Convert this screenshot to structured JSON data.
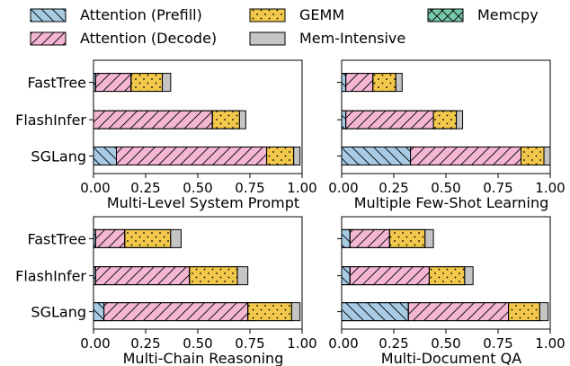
{
  "legend": [
    {
      "name": "Attention (Prefill)",
      "color": "#a8cbe4",
      "hatch": "backslash"
    },
    {
      "name": "Attention (Decode)",
      "color": "#f4b6d3",
      "hatch": "slash"
    },
    {
      "name": "GEMM",
      "color": "#f1c84b",
      "hatch": "dots"
    },
    {
      "name": "Mem-Intensive",
      "color": "#c5c5c5",
      "hatch": "none"
    },
    {
      "name": "Memcpy",
      "color": "#77c9a9",
      "hatch": "cross"
    }
  ],
  "chart_data": [
    {
      "type": "bar",
      "orientation": "horizontal",
      "stacked": true,
      "title": "",
      "xlabel": "Multi-Level System Prompt",
      "categories": [
        "FastTree",
        "FlashInfer",
        "SGLang"
      ],
      "xlim": [
        0,
        1.0
      ],
      "xticks": [
        "0.00",
        "0.25",
        "0.50",
        "0.75",
        "1.00"
      ],
      "series": [
        {
          "name": "Attention (Prefill)",
          "values": [
            0.01,
            0.0,
            0.11
          ]
        },
        {
          "name": "Attention (Decode)",
          "values": [
            0.17,
            0.57,
            0.72
          ]
        },
        {
          "name": "GEMM",
          "values": [
            0.15,
            0.13,
            0.13
          ]
        },
        {
          "name": "Mem-Intensive",
          "values": [
            0.04,
            0.03,
            0.03
          ]
        },
        {
          "name": "Memcpy",
          "values": [
            0.0,
            0.0,
            0.0
          ]
        }
      ]
    },
    {
      "type": "bar",
      "orientation": "horizontal",
      "stacked": true,
      "title": "",
      "xlabel": "Multiple Few-Shot Learning",
      "categories": [
        "FastTree",
        "FlashInfer",
        "SGLang"
      ],
      "xlim": [
        0,
        1.0
      ],
      "xticks": [
        "0.00",
        "0.25",
        "0.50",
        "0.75",
        "1.00"
      ],
      "series": [
        {
          "name": "Attention (Prefill)",
          "values": [
            0.02,
            0.02,
            0.33
          ]
        },
        {
          "name": "Attention (Decode)",
          "values": [
            0.13,
            0.42,
            0.53
          ]
        },
        {
          "name": "GEMM",
          "values": [
            0.11,
            0.11,
            0.11
          ]
        },
        {
          "name": "Mem-Intensive",
          "values": [
            0.03,
            0.03,
            0.03
          ]
        },
        {
          "name": "Memcpy",
          "values": [
            0.0,
            0.0,
            0.0
          ]
        }
      ]
    },
    {
      "type": "bar",
      "orientation": "horizontal",
      "stacked": true,
      "title": "",
      "xlabel": "Multi-Chain Reasoning",
      "categories": [
        "FastTree",
        "FlashInfer",
        "SGLang"
      ],
      "xlim": [
        0,
        1.0
      ],
      "xticks": [
        "0.00",
        "0.25",
        "0.50",
        "0.75",
        "1.00"
      ],
      "series": [
        {
          "name": "Attention (Prefill)",
          "values": [
            0.01,
            0.01,
            0.05
          ]
        },
        {
          "name": "Attention (Decode)",
          "values": [
            0.14,
            0.45,
            0.69
          ]
        },
        {
          "name": "GEMM",
          "values": [
            0.22,
            0.23,
            0.21
          ]
        },
        {
          "name": "Mem-Intensive",
          "values": [
            0.05,
            0.05,
            0.04
          ]
        },
        {
          "name": "Memcpy",
          "values": [
            0.0,
            0.0,
            0.0
          ]
        }
      ]
    },
    {
      "type": "bar",
      "orientation": "horizontal",
      "stacked": true,
      "title": "",
      "xlabel": "Multi-Document QA",
      "categories": [
        "FastTree",
        "FlashInfer",
        "SGLang"
      ],
      "xlim": [
        0,
        1.0
      ],
      "xticks": [
        "0.00",
        "0.25",
        "0.50",
        "0.75",
        "1.00"
      ],
      "series": [
        {
          "name": "Attention (Prefill)",
          "values": [
            0.04,
            0.04,
            0.32
          ]
        },
        {
          "name": "Attention (Decode)",
          "values": [
            0.19,
            0.38,
            0.48
          ]
        },
        {
          "name": "GEMM",
          "values": [
            0.17,
            0.17,
            0.15
          ]
        },
        {
          "name": "Mem-Intensive",
          "values": [
            0.04,
            0.04,
            0.04
          ]
        },
        {
          "name": "Memcpy",
          "values": [
            0.0,
            0.0,
            0.0
          ]
        }
      ]
    }
  ]
}
